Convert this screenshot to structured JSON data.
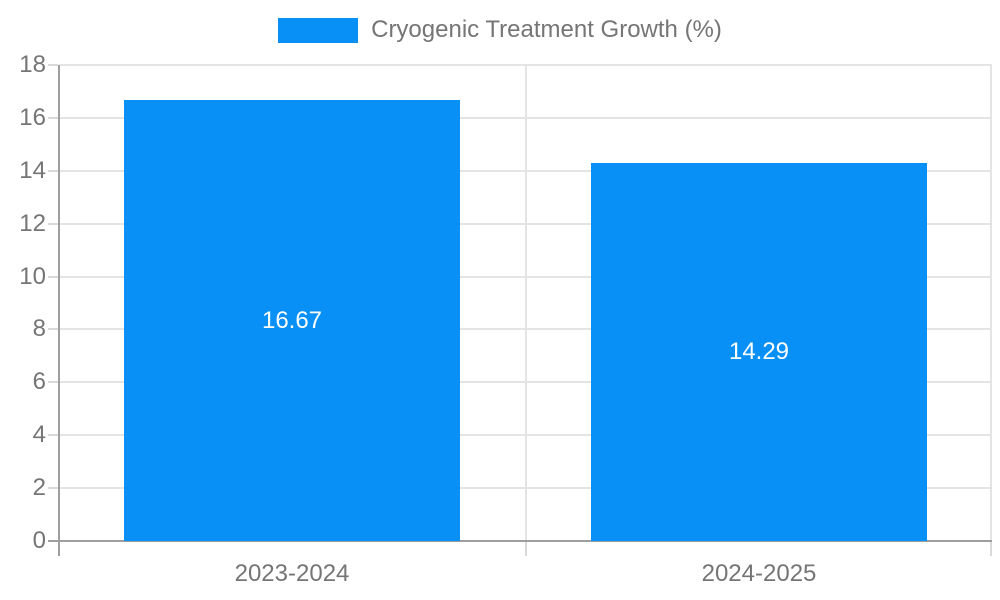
{
  "chart_data": {
    "type": "bar",
    "title": "Cryogenic Treatment Growth (%)",
    "legend_position": "top",
    "categories": [
      "2023-2024",
      "2024-2025"
    ],
    "values": [
      16.67,
      14.29
    ],
    "value_labels": [
      "16.67",
      "14.29"
    ],
    "xlabel": "",
    "ylabel": "",
    "ylim": [
      0,
      18
    ],
    "yticks": [
      0,
      2,
      4,
      6,
      8,
      10,
      12,
      14,
      16,
      18
    ],
    "grid": true,
    "colors": {
      "bar": "#0990f6",
      "value_text": "#ffffff",
      "axis_text": "#757575",
      "gridline": "#e4e4e4",
      "axis_line": "#9e9e9e",
      "tick": "#d9d9d9",
      "background": "#ffffff"
    }
  }
}
